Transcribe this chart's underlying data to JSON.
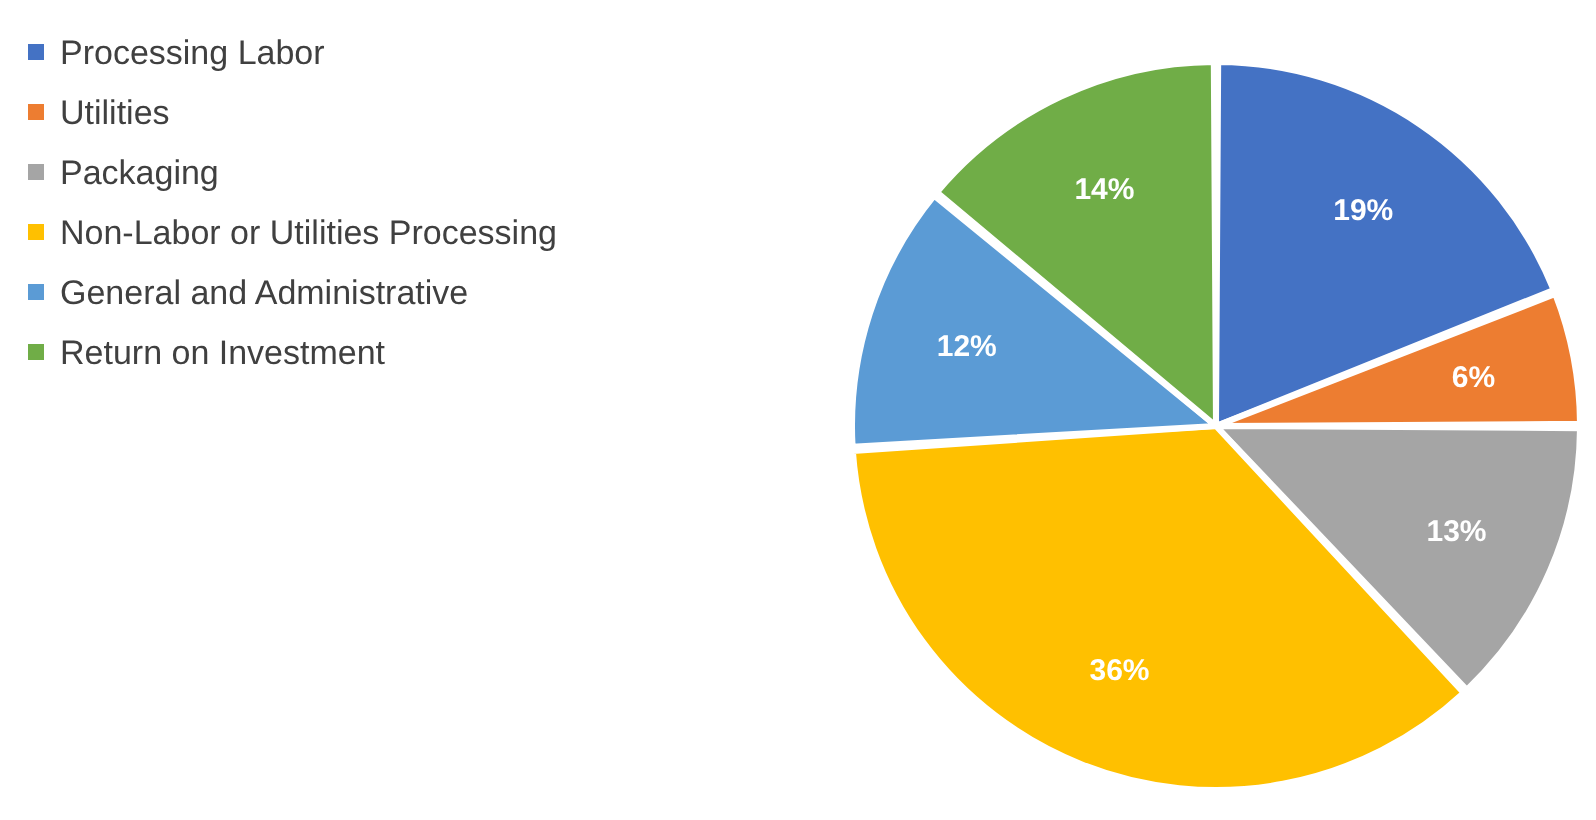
{
  "chart_data": {
    "type": "pie",
    "categories": [
      "Processing Labor",
      "Utilities",
      "Packaging",
      "Non-Labor or Utilities Processing",
      "General and Administrative",
      "Return on Investment"
    ],
    "values": [
      19,
      6,
      13,
      36,
      12,
      14
    ],
    "colors": [
      "#4472c4",
      "#ed7d31",
      "#a5a5a5",
      "#ffc000",
      "#5b9bd5",
      "#70ad47"
    ],
    "value_labels": [
      "19%",
      "6%",
      "13%",
      "36%",
      "12%",
      "14%"
    ],
    "legend": "top left"
  }
}
